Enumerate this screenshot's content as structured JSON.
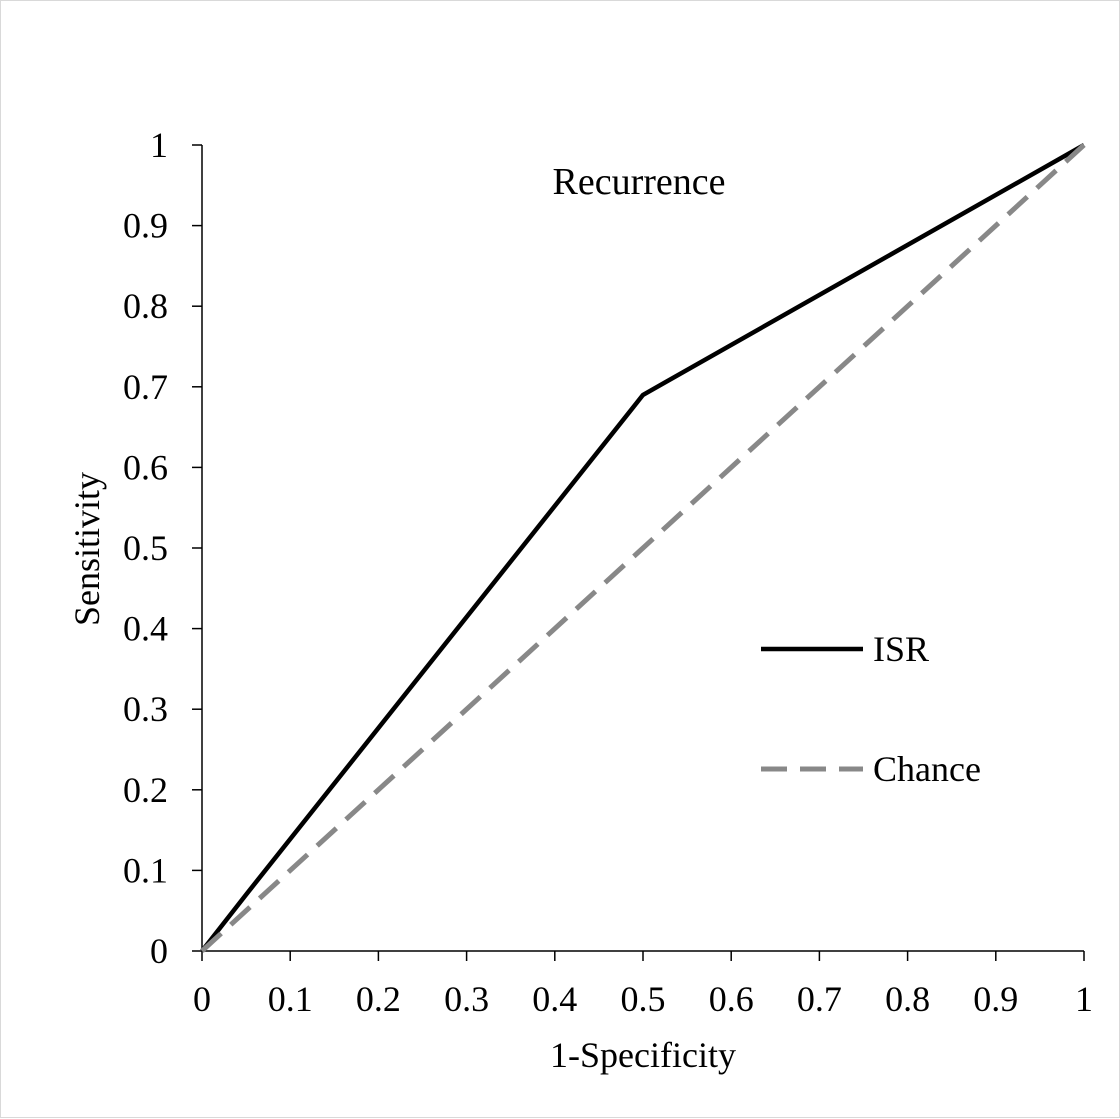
{
  "chart_data": {
    "type": "line",
    "title": "Recurrence",
    "xlabel": "1-Specificity",
    "ylabel": "Sensitivity",
    "xlim": [
      0,
      1
    ],
    "ylim": [
      0,
      1
    ],
    "x_ticks": [
      "0",
      "0.1",
      "0.2",
      "0.3",
      "0.4",
      "0.5",
      "0.6",
      "0.7",
      "0.8",
      "0.9",
      "1"
    ],
    "y_ticks": [
      "0",
      "0.1",
      "0.2",
      "0.3",
      "0.4",
      "0.5",
      "0.6",
      "0.7",
      "0.8",
      "0.9",
      "1"
    ],
    "grid": false,
    "legend_position": "lower-right",
    "series": [
      {
        "name": "ISR",
        "style": "solid",
        "color": "#000000",
        "points": [
          [
            0,
            0
          ],
          [
            0.05,
            0.07
          ],
          [
            0.5,
            0.69
          ],
          [
            1,
            1
          ]
        ]
      },
      {
        "name": "Chance",
        "style": "dashed",
        "color": "#888888",
        "points": [
          [
            0,
            0
          ],
          [
            1,
            1
          ]
        ]
      }
    ]
  }
}
